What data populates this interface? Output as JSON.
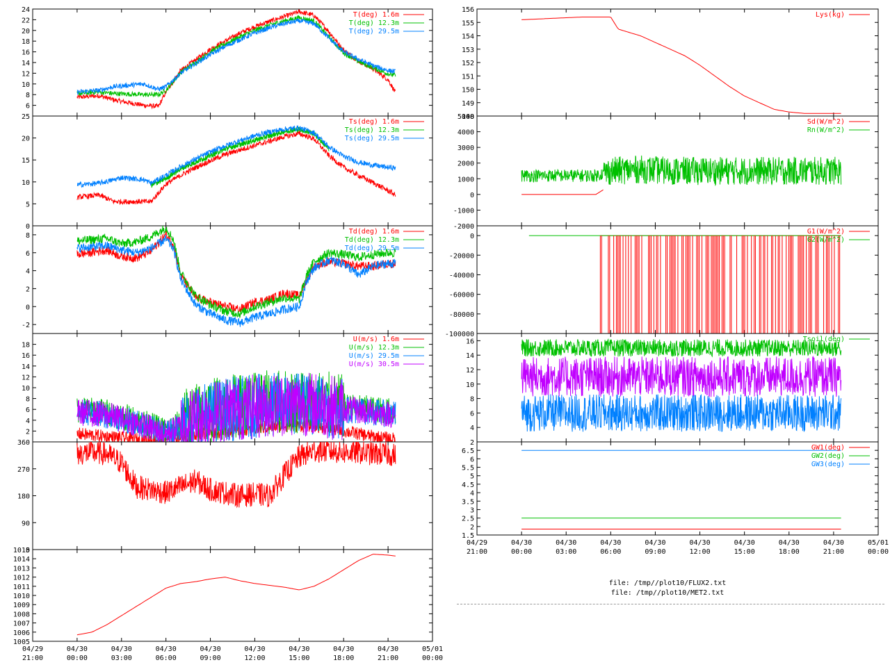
{
  "files": [
    "file: /tmp//plot10/FLUX2.txt",
    "file: /tmp//plot10/MET2.txt"
  ],
  "chart_data": [
    {
      "type": "line",
      "id": "temperature",
      "ylim": [
        4,
        24
      ],
      "yticks": [
        "24",
        "22",
        "20",
        "18",
        "16",
        "14",
        "12",
        "10",
        "8",
        "6"
      ],
      "series": [
        {
          "name": "T(deg)  1.6m",
          "color": "#ff0000",
          "x": [
            0,
            1.5,
            2.5,
            4.5,
            5.5,
            6,
            7,
            8,
            9,
            10,
            11,
            12,
            13,
            14,
            15,
            16,
            17,
            18,
            19,
            20,
            21,
            21.5
          ],
          "values": [
            7.5,
            7.8,
            7.0,
            6.0,
            5.8,
            8.5,
            12.5,
            14.5,
            16.5,
            18,
            19.5,
            20.7,
            21.7,
            22.6,
            23.5,
            22.8,
            19.8,
            16.3,
            14.3,
            12.8,
            10.8,
            8.4
          ]
        },
        {
          "name": "T(deg) 12.3m",
          "color": "#00c000",
          "x": [
            0,
            1.5,
            2.5,
            4.5,
            5.5,
            6,
            7,
            8,
            9,
            10,
            11,
            12,
            13,
            14,
            15,
            16,
            17,
            18,
            19,
            20,
            21,
            21.5
          ],
          "values": [
            8.2,
            8.5,
            8.2,
            8.0,
            8.0,
            8.8,
            12.2,
            14,
            16,
            17.5,
            18.8,
            20.0,
            21.0,
            21.8,
            22.4,
            21.8,
            18.8,
            15.8,
            14.2,
            13.0,
            11.9,
            11.6
          ]
        },
        {
          "name": "T(deg) 29.5m",
          "color": "#0080ff",
          "x": [
            0,
            1.5,
            2.5,
            4.5,
            5.5,
            6,
            7,
            8,
            9,
            10,
            11,
            12,
            13,
            14,
            15,
            16,
            17,
            18,
            19,
            20,
            21,
            21.5
          ],
          "values": [
            8.5,
            8.8,
            9.5,
            10.0,
            9.0,
            9.5,
            12.0,
            13.8,
            15.5,
            17,
            18.3,
            19.5,
            20.5,
            21.3,
            21.8,
            21.3,
            18.6,
            16.0,
            14.6,
            13.4,
            12.5,
            12.3
          ]
        }
      ]
    },
    {
      "type": "line",
      "id": "surface-temperature",
      "ylim": [
        0,
        25
      ],
      "yticks": [
        "25",
        "20",
        "15",
        "10",
        "5",
        "0"
      ],
      "series": [
        {
          "name": "Ts(deg)  1.6m",
          "color": "#ff0000",
          "x": [
            0,
            1.5,
            2.5,
            4.5,
            5,
            6,
            7,
            8,
            9,
            10,
            11,
            12,
            13,
            14,
            15,
            16,
            17,
            18,
            19,
            20,
            21,
            21.5
          ],
          "values": [
            6.5,
            7.0,
            5.5,
            5.5,
            5.5,
            9.5,
            11.5,
            13.3,
            14.8,
            16.2,
            17.3,
            18.3,
            19.3,
            20.3,
            21.0,
            19.8,
            16.0,
            13.3,
            11.5,
            9.8,
            8.0,
            7.0
          ]
        },
        {
          "name": "Ts(deg) 12.3m",
          "color": "#00c000",
          "x": [
            5,
            6,
            7,
            8,
            9,
            10,
            11,
            12,
            13,
            14,
            15,
            16,
            17
          ],
          "values": [
            9.2,
            10.8,
            13.0,
            14.5,
            16.0,
            17.5,
            18.5,
            19.5,
            20.5,
            21.5,
            22.0,
            21.0,
            17.5
          ]
        },
        {
          "name": "Ts(deg) 29.5m",
          "color": "#0080ff",
          "x": [
            0,
            1.5,
            2.5,
            3,
            4.5,
            5,
            6,
            7,
            8,
            9,
            10,
            11,
            12,
            13,
            14,
            15,
            16,
            17,
            18,
            19,
            20,
            21,
            21.5
          ],
          "values": [
            9.3,
            9.7,
            10.5,
            11.0,
            10.5,
            9.7,
            11.5,
            13.5,
            15.2,
            16.8,
            18.2,
            19.4,
            20.5,
            21.4,
            22.0,
            22.3,
            21.2,
            18.0,
            15.8,
            14.5,
            13.8,
            13.3,
            13.2
          ]
        }
      ]
    },
    {
      "type": "line",
      "id": "dewpoint",
      "ylim": [
        -3,
        9
      ],
      "yticks": [
        "8",
        "6",
        "4",
        "2",
        "0",
        "-2"
      ],
      "series": [
        {
          "name": "Td(deg)  1.6m",
          "color": "#ff0000",
          "x": [
            0,
            2,
            3,
            4,
            5,
            6,
            6.5,
            7,
            8,
            9,
            10,
            11,
            12,
            13,
            14,
            15,
            15.5,
            16,
            17,
            18,
            19,
            20,
            21,
            21.5
          ],
          "values": [
            5.8,
            6.3,
            5.6,
            5.4,
            6.2,
            8.0,
            7.0,
            3.5,
            1.0,
            0.5,
            0.0,
            -0.3,
            0.5,
            0.8,
            1.5,
            1.2,
            3.0,
            4.5,
            5.0,
            4.8,
            4.5,
            4.5,
            4.8,
            4.8
          ]
        },
        {
          "name": "Td(deg) 12.3m",
          "color": "#00c000",
          "x": [
            0,
            2,
            3,
            4,
            5,
            6,
            6.5,
            7,
            8,
            9,
            10,
            11,
            12,
            13,
            14,
            15,
            15.5,
            16,
            17,
            18,
            19,
            20,
            21,
            21.5
          ],
          "values": [
            7.3,
            7.6,
            7.0,
            7.2,
            7.8,
            8.8,
            7.5,
            3.8,
            1.2,
            0.2,
            -0.5,
            -0.8,
            0.0,
            0.5,
            1.0,
            0.8,
            3.5,
            5.0,
            6.0,
            5.8,
            5.5,
            5.8,
            6.0,
            6.0
          ]
        },
        {
          "name": "Td(deg) 29.5m",
          "color": "#0080ff",
          "x": [
            0,
            2,
            3,
            4,
            5,
            6,
            6.5,
            7,
            8,
            9,
            10,
            11,
            12,
            13,
            14,
            15,
            15.5,
            16,
            17,
            18,
            19,
            20,
            21,
            21.5
          ],
          "values": [
            6.5,
            6.8,
            6.3,
            6.0,
            6.5,
            7.5,
            6.5,
            3.0,
            0.2,
            -0.8,
            -1.5,
            -1.8,
            -1.2,
            -0.8,
            -0.3,
            0.0,
            2.8,
            4.3,
            5.2,
            4.8,
            3.5,
            4.5,
            4.8,
            4.8
          ]
        }
      ]
    },
    {
      "type": "line",
      "id": "wind-speed",
      "ylim": [
        0,
        20
      ],
      "yticks": [
        "18",
        "16",
        "14",
        "12",
        "10",
        "8",
        "6",
        "4",
        "2"
      ],
      "series": [
        {
          "name": "U(m/s)  1.6m",
          "color": "#ff0000",
          "x": [
            0,
            2,
            4,
            6,
            8,
            10,
            12,
            14,
            16,
            18,
            20,
            21.5
          ],
          "values": [
            1.5,
            1.0,
            0.5,
            0.5,
            1.5,
            2.0,
            2.5,
            3.0,
            3.0,
            2.0,
            1.0,
            0.5
          ]
        },
        {
          "name": "U(m/s) 12.3m",
          "color": "#00c000",
          "x": [
            0,
            2,
            4,
            6,
            8,
            10,
            12,
            14,
            16,
            18,
            20,
            21.5
          ],
          "values": [
            6.0,
            5.5,
            4.0,
            2.0,
            5.0,
            6.5,
            7.0,
            7.5,
            7.5,
            6.5,
            6.0,
            5.5
          ]
        },
        {
          "name": "U(m/s) 29.5m",
          "color": "#0080ff",
          "x": [
            0,
            2,
            4,
            6,
            8,
            10,
            12,
            14,
            16,
            18,
            20,
            21.5
          ],
          "values": [
            5.5,
            5.0,
            3.5,
            1.5,
            4.5,
            6.0,
            6.5,
            7.0,
            7.0,
            6.0,
            5.5,
            5.0
          ]
        },
        {
          "name": "U(m/s) 30.5m",
          "color": "#c000ff",
          "x": [
            0,
            2,
            4,
            6,
            8,
            10,
            12,
            14,
            16,
            18,
            20,
            21.5
          ],
          "values": [
            5.5,
            5.0,
            3.5,
            1.5,
            4.5,
            6.0,
            6.5,
            7.0,
            7.0,
            6.0,
            5.5,
            5.0
          ]
        }
      ]
    },
    {
      "type": "line",
      "id": "wind-direction",
      "ylim": [
        0,
        360
      ],
      "yticks": [
        "360",
        "270",
        "180",
        "90",
        "0"
      ],
      "series": [
        {
          "name": "",
          "color": "#ff0000",
          "x": [
            0,
            1,
            2,
            3,
            3.5,
            4,
            5,
            6,
            7,
            8,
            9,
            10,
            11,
            12,
            13,
            14,
            15,
            16,
            17,
            18,
            19,
            20,
            21,
            21.5
          ],
          "values": [
            320,
            325,
            320,
            290,
            250,
            210,
            200,
            190,
            210,
            230,
            200,
            190,
            180,
            185,
            180,
            250,
            310,
            330,
            330,
            325,
            325,
            320,
            320,
            315
          ]
        }
      ]
    },
    {
      "type": "line",
      "id": "pressure",
      "ylim": [
        1005,
        1015
      ],
      "yticks": [
        "1015",
        "1014",
        "1013",
        "1012",
        "1011",
        "1010",
        "1009",
        "1008",
        "1007",
        "1006",
        "1005"
      ],
      "series": [
        {
          "name": "",
          "color": "#ff0000",
          "x": [
            0,
            1,
            2,
            3,
            4,
            5,
            6,
            7,
            8,
            9,
            10,
            11,
            12,
            13,
            14,
            15,
            16,
            17,
            18,
            19,
            20,
            21,
            21.5
          ],
          "values": [
            1005.7,
            1006.0,
            1006.8,
            1007.8,
            1008.8,
            1009.8,
            1010.8,
            1011.3,
            1011.5,
            1011.8,
            1012.0,
            1011.6,
            1011.3,
            1011.1,
            1010.9,
            1010.6,
            1011.0,
            1011.8,
            1012.8,
            1013.8,
            1014.5,
            1014.4,
            1014.3
          ]
        }
      ]
    },
    {
      "type": "line",
      "id": "lysimeter",
      "ylim": [
        148,
        156
      ],
      "yticks": [
        "156",
        "155",
        "154",
        "153",
        "152",
        "151",
        "150",
        "149",
        "148"
      ],
      "series": [
        {
          "name": "Lys(kg)",
          "color": "#ff0000",
          "x": [
            0,
            2,
            4,
            5,
            6,
            6.5,
            8,
            9,
            10,
            11,
            12,
            13,
            14,
            15,
            16,
            17,
            18,
            19,
            20,
            21,
            21.5
          ],
          "values": [
            155.2,
            155.3,
            155.4,
            155.4,
            155.4,
            154.5,
            154.0,
            153.5,
            153.0,
            152.5,
            151.8,
            151.0,
            150.2,
            149.5,
            149.0,
            148.5,
            148.3,
            148.2,
            148.2,
            148.2,
            148.2
          ]
        }
      ]
    },
    {
      "type": "line",
      "id": "radiation",
      "ylim": [
        -2000,
        5000
      ],
      "yticks": [
        "5000",
        "4000",
        "3000",
        "2000",
        "1000",
        "0",
        "-1000",
        "-2000"
      ],
      "series": [
        {
          "name": "Sd(W/m^2)",
          "color": "#ff0000",
          "x": [
            0,
            2,
            4,
            5,
            5.5
          ],
          "values": [
            0,
            0,
            0,
            0,
            300
          ]
        },
        {
          "name": "Rn(W/m^2)",
          "color": "#00c000",
          "x": [
            0,
            2,
            4,
            5,
            6,
            8,
            10,
            12,
            14,
            16,
            18,
            20,
            21.5
          ],
          "values": [
            1200,
            1200,
            1200,
            1200,
            1500,
            1600,
            1500,
            1500,
            1500,
            1500,
            1500,
            1500,
            1500
          ]
        }
      ]
    },
    {
      "type": "line",
      "id": "soil-heat-flux",
      "ylim": [
        -100000,
        10000
      ],
      "yticks": [
        "0",
        "-20000",
        "-40000",
        "-60000",
        "-80000",
        "-100000"
      ],
      "series": [
        {
          "name": "G1(W/m^2)",
          "color": "#ff0000",
          "x": [
            5.3,
            21.5
          ],
          "values": [
            0,
            0
          ]
        },
        {
          "name": "G2(W/m^2)",
          "color": "#00c000",
          "x": [
            0.5,
            21.5
          ],
          "values": [
            0,
            0
          ]
        }
      ]
    },
    {
      "type": "line",
      "id": "soil-temperature",
      "ylim": [
        2,
        17
      ],
      "yticks": [
        "16",
        "14",
        "12",
        "10",
        "8",
        "6",
        "4",
        "2"
      ],
      "series": [
        {
          "name": "Tsoil(deg)",
          "color": "#00c000",
          "x": [
            0,
            21.5
          ],
          "values": [
            15,
            15
          ]
        },
        {
          "name": "",
          "color": "#c000ff",
          "x": [
            0,
            21.5
          ],
          "values": [
            11,
            11
          ]
        },
        {
          "name": "",
          "color": "#0080ff",
          "x": [
            0,
            21.5
          ],
          "values": [
            6,
            6
          ]
        }
      ]
    },
    {
      "type": "line",
      "id": "groundwater",
      "ylim": [
        1.5,
        7
      ],
      "yticks": [
        "6.5",
        "6",
        "5.5",
        "5",
        "4.5",
        "4",
        "3.5",
        "3",
        "2.5",
        "2",
        "1.5"
      ],
      "series": [
        {
          "name": "GW1(deg)",
          "color": "#ff0000",
          "x": [
            0,
            21.5
          ],
          "values": [
            1.85,
            1.85
          ]
        },
        {
          "name": "GW2(deg)",
          "color": "#00c000",
          "x": [
            0,
            21.5
          ],
          "values": [
            2.5,
            2.5
          ]
        },
        {
          "name": "GW3(deg)",
          "color": "#0080ff",
          "x": [
            0,
            21.5
          ],
          "values": [
            6.5,
            6.5
          ]
        }
      ]
    }
  ],
  "x_axis": {
    "unit": "hours since 04/30 00:00",
    "xlim": [
      -3,
      24
    ],
    "ticks": [
      {
        "date": "04/29",
        "time": "21:00"
      },
      {
        "date": "04/30",
        "time": "00:00"
      },
      {
        "date": "04/30",
        "time": "03:00"
      },
      {
        "date": "04/30",
        "time": "06:00"
      },
      {
        "date": "04/30",
        "time": "09:00"
      },
      {
        "date": "04/30",
        "time": "12:00"
      },
      {
        "date": "04/30",
        "time": "15:00"
      },
      {
        "date": "04/30",
        "time": "18:00"
      },
      {
        "date": "04/30",
        "time": "21:00"
      },
      {
        "date": "05/01",
        "time": "00:00"
      }
    ]
  }
}
